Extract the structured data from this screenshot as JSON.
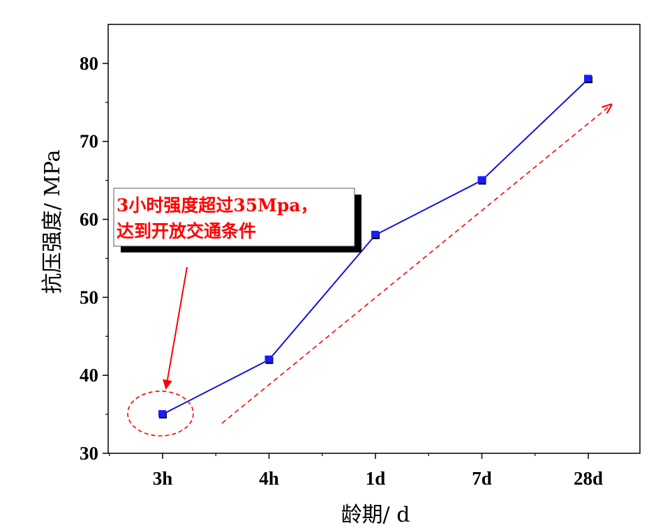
{
  "chart_data": {
    "type": "line",
    "categories": [
      "3h",
      "4h",
      "1d",
      "7d",
      "28d"
    ],
    "series": [
      {
        "values": [
          35,
          42,
          58,
          65,
          78
        ]
      }
    ],
    "xlabel": "龄期/ d",
    "ylabel": "抗压强度/ MPa",
    "ylim": [
      30,
      85
    ],
    "yticks": [
      30,
      40,
      50,
      60,
      70,
      80
    ],
    "grid": false,
    "legend": "none",
    "annotation": {
      "lines": [
        "3小时强度超过35Mpa，",
        "达到开放交通条件"
      ],
      "target_category": "3h"
    },
    "colors": {
      "line": "#1010e0",
      "marker_fill": "#1c1cff",
      "marker_shadow": "#000000",
      "annotation": "#ff0000",
      "axis": "#000000"
    }
  }
}
